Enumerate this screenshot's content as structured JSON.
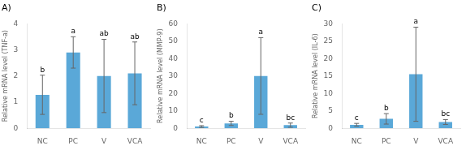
{
  "chart_data": [
    {
      "type": "bar",
      "title": "A)",
      "ylabel": "Relative mRNA level (TNF-a)",
      "categories": [
        "NC",
        "PC",
        "V",
        "VCA"
      ],
      "values": [
        1.28,
        2.9,
        2.0,
        2.1
      ],
      "errors": [
        0.75,
        0.6,
        1.4,
        1.2
      ],
      "annotations": [
        "b",
        "a",
        "ab",
        "ab"
      ],
      "color": "#5aa8d8",
      "ylim": [
        0,
        4
      ],
      "yticks": [
        0,
        1,
        2,
        3,
        4
      ],
      "grid": false
    },
    {
      "type": "bar",
      "title": "B)",
      "ylabel": "Relative mRNA level (MMP-9)",
      "categories": [
        "NC",
        "PC",
        "V",
        "VCA"
      ],
      "values": [
        1.0,
        2.8,
        30.0,
        1.8
      ],
      "errors": [
        0.5,
        1.2,
        22.0,
        1.2
      ],
      "annotations": [
        "c",
        "b",
        "a",
        "bc"
      ],
      "color": "#5aa8d8",
      "ylim": [
        0,
        60
      ],
      "yticks": [
        0,
        10,
        20,
        30,
        40,
        50,
        60
      ],
      "grid": false
    },
    {
      "type": "bar",
      "title": "C)",
      "ylabel": "Relative mRNA level (IL-6)",
      "categories": [
        "NC",
        "PC",
        "V",
        "VCA"
      ],
      "values": [
        1.0,
        2.7,
        15.5,
        1.8
      ],
      "errors": [
        0.4,
        1.5,
        13.5,
        0.7
      ],
      "annotations": [
        "c",
        "b",
        "a",
        "bc"
      ],
      "color": "#5aa8d8",
      "ylim": [
        0,
        30
      ],
      "yticks": [
        0,
        5,
        10,
        15,
        20,
        25,
        30
      ],
      "grid": false
    }
  ]
}
